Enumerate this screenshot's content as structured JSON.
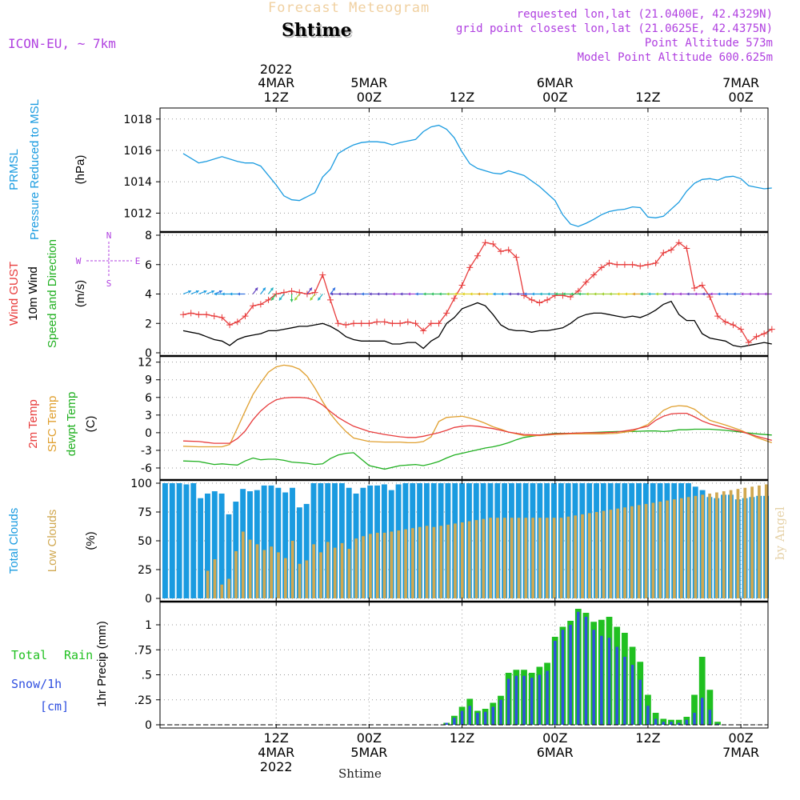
{
  "header": {
    "title_faint": "Forecast Meteogram",
    "station": "Shtime",
    "model": "ICON-EU, ~ 7km",
    "requested": "requested lon,lat (21.0400E, 42.4329N)",
    "gridpoint": "grid point closest lon,lat (21.0625E, 42.4375N)",
    "point_alt": "Point Altitude 573m",
    "model_alt": "Model Point Altitude 600.625m",
    "bottom_station": "Shtime",
    "credit": "by Angel"
  },
  "time_axis": {
    "year": "2022",
    "top_labels": [
      {
        "hour": 12,
        "l1": "4MAR",
        "l2": "12Z"
      },
      {
        "hour": 24,
        "l1": "5MAR",
        "l2": "00Z"
      },
      {
        "hour": 36,
        "l1": "",
        "l2": "12Z"
      },
      {
        "hour": 48,
        "l1": "6MAR",
        "l2": "00Z"
      },
      {
        "hour": 60,
        "l1": "",
        "l2": "12Z"
      },
      {
        "hour": 72,
        "l1": "7MAR",
        "l2": "00Z"
      }
    ],
    "bottom_labels": [
      {
        "hour": 12,
        "l1": "12Z",
        "l2": "4MAR",
        "l3": "2022"
      },
      {
        "hour": 24,
        "l1": "00Z",
        "l2": "5MAR",
        "l3": ""
      },
      {
        "hour": 36,
        "l1": "12Z",
        "l2": "",
        "l3": ""
      },
      {
        "hour": 48,
        "l1": "00Z",
        "l2": "6MAR",
        "l3": ""
      },
      {
        "hour": 60,
        "l1": "12Z",
        "l2": "",
        "l3": ""
      },
      {
        "hour": 72,
        "l1": "00Z",
        "l2": "7MAR",
        "l3": ""
      }
    ]
  },
  "panel_labels": {
    "pressure": {
      "l1": "PRMSL",
      "l2": "Pressure Reduced to MSL",
      "unit": "(hPa)"
    },
    "wind": {
      "gust": "Wind GUST",
      "wind10": "10m Wind",
      "dir": "Speed and Direction",
      "unit": "(m/s)",
      "compass_n": "N",
      "compass_s": "S",
      "compass_w": "W",
      "compass_e": "E"
    },
    "temp": {
      "t2m": "2m Temp",
      "sfc": "SFC Temp",
      "dew": "dewpt Temp",
      "unit": "(C)"
    },
    "clouds": {
      "total": "Total Clouds",
      "low": "Low Clouds",
      "unit": "(%)"
    },
    "precip": {
      "total": "Total",
      "rain": "Rain",
      "snow": "Snow/1h",
      "cm": "[cm]",
      "unit": "1hr Precip (mm)"
    }
  },
  "colors": {
    "pressure": "#1a9be0",
    "gust": "#e83c3c",
    "wind": "#000000",
    "t2m": "#e83c3c",
    "sfc": "#e0a030",
    "dew": "#20b020",
    "total_cloud": "#1a9be0",
    "low_cloud": "#d0a850",
    "rain": "#20c020",
    "snow": "#3050e0"
  },
  "chart_data": [
    {
      "type": "line",
      "title": "PRMSL Pressure Reduced to MSL",
      "ylabel": "(hPa)",
      "ylim": [
        1011,
        1018.5
      ],
      "yticks": [
        1012,
        1014,
        1016,
        1018
      ],
      "x": [
        0,
        2,
        3,
        5,
        7,
        8,
        9,
        10,
        12,
        13,
        14,
        15,
        17,
        18,
        19,
        20,
        21,
        22,
        23,
        24,
        25,
        26,
        27,
        28,
        29,
        30,
        31,
        32,
        33,
        34,
        35,
        36,
        37,
        38,
        39,
        40,
        41,
        42,
        44,
        46,
        48,
        49,
        50,
        51,
        52,
        53,
        54,
        55,
        56,
        57,
        58,
        59,
        60,
        61,
        62,
        64,
        65,
        66,
        67,
        68,
        69,
        70,
        71,
        72,
        73,
        74,
        75,
        76
      ],
      "series": [
        {
          "name": "PRMSL",
          "values": [
            1015.8,
            1015.2,
            1015.3,
            1015.6,
            1015.3,
            1015.2,
            1015.2,
            1015.0,
            1013.8,
            1013.1,
            1012.85,
            1012.8,
            1013.3,
            1014.3,
            1014.8,
            1015.8,
            1016.1,
            1016.35,
            1016.5,
            1016.55,
            1016.55,
            1016.5,
            1016.35,
            1016.5,
            1016.6,
            1016.7,
            1017.2,
            1017.5,
            1017.6,
            1017.35,
            1016.8,
            1015.9,
            1015.15,
            1014.85,
            1014.7,
            1014.55,
            1014.5,
            1014.7,
            1014.4,
            1013.7,
            1012.8,
            1011.9,
            1011.3,
            1011.15,
            1011.35,
            1011.6,
            1011.9,
            1012.1,
            1012.2,
            1012.25,
            1012.4,
            1012.35,
            1011.75,
            1011.7,
            1011.8,
            1012.7,
            1013.4,
            1013.9,
            1014.15,
            1014.2,
            1014.1,
            1014.3,
            1014.35,
            1014.2,
            1013.75,
            1013.65,
            1013.55,
            1013.6
          ]
        }
      ]
    },
    {
      "type": "line",
      "title": "Wind GUST / 10m Wind Speed and Direction",
      "ylabel": "(m/s)",
      "ylim": [
        0,
        8
      ],
      "yticks": [
        0,
        2,
        4,
        6,
        8
      ],
      "x": [
        0,
        1,
        2,
        3,
        4,
        5,
        6,
        7,
        8,
        9,
        10,
        11,
        12,
        13,
        14,
        15,
        16,
        17,
        18,
        19,
        20,
        21,
        22,
        23,
        24,
        25,
        26,
        27,
        28,
        29,
        30,
        31,
        32,
        33,
        34,
        35,
        36,
        37,
        38,
        39,
        40,
        41,
        42,
        43,
        44,
        45,
        46,
        47,
        48,
        49,
        50,
        51,
        52,
        53,
        54,
        55,
        56,
        57,
        58,
        59,
        60,
        61,
        62,
        63,
        64,
        65,
        66,
        67,
        68,
        69,
        70,
        71,
        72,
        73,
        74,
        75,
        76
      ],
      "series": [
        {
          "name": "Wind GUST",
          "values": [
            2.6,
            2.7,
            2.6,
            2.6,
            2.5,
            2.4,
            1.9,
            2.1,
            2.5,
            3.2,
            3.3,
            3.6,
            4.0,
            4.1,
            4.2,
            4.1,
            4.0,
            4.1,
            5.3,
            3.6,
            2.0,
            1.9,
            2.0,
            2.0,
            2.0,
            2.1,
            2.1,
            2.0,
            2.0,
            2.1,
            2.0,
            1.5,
            2.0,
            2.0,
            2.7,
            3.7,
            4.6,
            5.8,
            6.6,
            7.5,
            7.4,
            6.9,
            7.0,
            6.5,
            3.9,
            3.6,
            3.4,
            3.6,
            3.9,
            3.9,
            3.8,
            4.2,
            4.8,
            5.3,
            5.8,
            6.1,
            6.0,
            6.0,
            6.0,
            5.9,
            6.0,
            6.1,
            6.8,
            7.0,
            7.5,
            7.1,
            4.4,
            4.6,
            3.8,
            2.5,
            2.1,
            1.9,
            1.6,
            0.7,
            1.1,
            1.3,
            1.6
          ]
        },
        {
          "name": "10m Wind",
          "values": [
            1.5,
            1.4,
            1.3,
            1.1,
            0.9,
            0.8,
            0.5,
            0.9,
            1.1,
            1.2,
            1.3,
            1.5,
            1.5,
            1.6,
            1.7,
            1.8,
            1.8,
            1.9,
            2.0,
            1.8,
            1.5,
            1.1,
            0.9,
            0.8,
            0.8,
            0.8,
            0.8,
            0.6,
            0.6,
            0.7,
            0.7,
            0.3,
            0.8,
            1.1,
            2.0,
            2.4,
            3.0,
            3.2,
            3.4,
            3.2,
            2.6,
            1.9,
            1.6,
            1.5,
            1.5,
            1.4,
            1.5,
            1.5,
            1.6,
            1.7,
            2.0,
            2.4,
            2.6,
            2.7,
            2.7,
            2.6,
            2.5,
            2.4,
            2.5,
            2.4,
            2.6,
            2.9,
            3.3,
            3.5,
            2.6,
            2.2,
            2.2,
            1.3,
            1.0,
            0.9,
            0.8,
            0.5,
            0.4,
            0.5,
            0.6,
            0.7,
            0.6
          ]
        }
      ]
    },
    {
      "type": "line",
      "title": "2m Temp / SFC Temp / dewpt Temp",
      "ylabel": "(C)",
      "ylim": [
        -7.5,
        12.5
      ],
      "yticks": [
        -6,
        -3,
        0,
        3,
        6,
        9,
        12
      ],
      "x": [
        0,
        2,
        4,
        5,
        6,
        7,
        8,
        9,
        10,
        11,
        12,
        13,
        14,
        15,
        16,
        17,
        18,
        19,
        20,
        21,
        22,
        24,
        26,
        28,
        29,
        30,
        31,
        32,
        33,
        34,
        35,
        36,
        37,
        38,
        39,
        40,
        41,
        42,
        43,
        44,
        46,
        48,
        50,
        52,
        54,
        56,
        58,
        60,
        61,
        62,
        63,
        64,
        65,
        66,
        67,
        68,
        70,
        72,
        74,
        76
      ],
      "series": [
        {
          "name": "2m Temp",
          "values": [
            -1.4,
            -1.5,
            -1.8,
            -1.8,
            -1.8,
            -1.0,
            0.3,
            2.2,
            3.7,
            4.8,
            5.6,
            5.9,
            6.0,
            6.0,
            5.9,
            5.5,
            4.7,
            3.6,
            2.6,
            1.8,
            1.1,
            0.2,
            -0.3,
            -0.7,
            -0.8,
            -0.8,
            -0.6,
            -0.3,
            0.0,
            0.4,
            0.9,
            1.1,
            1.2,
            1.1,
            0.9,
            0.7,
            0.4,
            0.1,
            -0.1,
            -0.3,
            -0.4,
            -0.2,
            -0.1,
            0.0,
            0.0,
            0.1,
            0.5,
            1.1,
            2.1,
            2.8,
            3.2,
            3.3,
            3.3,
            2.7,
            2.0,
            1.5,
            0.8,
            0.2,
            -0.6,
            -1.3
          ]
        },
        {
          "name": "SFC Temp",
          "values": [
            -2.3,
            -2.4,
            -2.4,
            -2.4,
            -2.0,
            0.8,
            3.7,
            6.5,
            8.5,
            10.3,
            11.2,
            11.5,
            11.3,
            10.8,
            9.6,
            7.6,
            5.3,
            3.2,
            1.6,
            0.2,
            -0.9,
            -1.5,
            -1.6,
            -1.6,
            -1.7,
            -1.7,
            -1.5,
            -0.7,
            1.9,
            2.6,
            2.7,
            2.8,
            2.5,
            2.1,
            1.6,
            1.0,
            0.6,
            0.1,
            -0.2,
            -0.5,
            -0.5,
            -0.3,
            -0.2,
            -0.2,
            -0.2,
            -0.1,
            0.3,
            1.4,
            2.6,
            3.8,
            4.4,
            4.6,
            4.5,
            4.0,
            3.0,
            2.1,
            1.3,
            0.4,
            -0.8,
            -1.7
          ]
        },
        {
          "name": "dewpt Temp",
          "values": [
            -4.8,
            -4.9,
            -5.4,
            -5.3,
            -5.4,
            -5.5,
            -4.8,
            -4.3,
            -4.6,
            -4.5,
            -4.5,
            -4.7,
            -5.0,
            -5.1,
            -5.2,
            -5.4,
            -5.3,
            -4.4,
            -3.8,
            -3.5,
            -3.4,
            -5.6,
            -6.2,
            -5.6,
            -5.5,
            -5.4,
            -5.6,
            -5.3,
            -4.9,
            -4.3,
            -3.8,
            -3.5,
            -3.2,
            -2.9,
            -2.6,
            -2.4,
            -2.1,
            -1.7,
            -1.2,
            -0.8,
            -0.4,
            -0.1,
            -0.1,
            0.0,
            0.1,
            0.2,
            0.2,
            0.3,
            0.3,
            0.2,
            0.3,
            0.5,
            0.5,
            0.6,
            0.6,
            0.6,
            0.4,
            0.1,
            -0.2,
            -0.4
          ]
        }
      ]
    },
    {
      "type": "bar",
      "title": "Total Clouds / Low Clouds",
      "ylabel": "(%)",
      "ylim": [
        0,
        100
      ],
      "yticks": [
        0,
        25,
        50,
        75,
        100
      ],
      "series": [
        {
          "name": "Total Clouds",
          "values": [
            100,
            100,
            100,
            99,
            100,
            87,
            91,
            93,
            91,
            73,
            84,
            95,
            93,
            94,
            98,
            98,
            96,
            92,
            96,
            79,
            82,
            100,
            100,
            100,
            100,
            100,
            96,
            91,
            96,
            98,
            98,
            99,
            94,
            99,
            100,
            100,
            100,
            100,
            100,
            100,
            100,
            100,
            100,
            100,
            100,
            100,
            100,
            100,
            100,
            100,
            100,
            100,
            100,
            100,
            100,
            100,
            100,
            100,
            100,
            100,
            100,
            100,
            100,
            100,
            100,
            100,
            100,
            100,
            100,
            100,
            100,
            100,
            100,
            100,
            100,
            97,
            94,
            88,
            87,
            90,
            90,
            86,
            87,
            88,
            89,
            89
          ]
        },
        {
          "name": "Low Clouds",
          "values": [
            0,
            0,
            0,
            0,
            0,
            0,
            24,
            34,
            12,
            17,
            41,
            58,
            51,
            47,
            42,
            45,
            40,
            35,
            50,
            30,
            33,
            47,
            40,
            49,
            44,
            48,
            43,
            52,
            54,
            56,
            57,
            57,
            58,
            59,
            60,
            61,
            62,
            63,
            62,
            63,
            64,
            65,
            66,
            67,
            68,
            69,
            70,
            70,
            70,
            70,
            70,
            70,
            70,
            70,
            70,
            70,
            70,
            71,
            72,
            73,
            74,
            75,
            76,
            77,
            78,
            79,
            80,
            81,
            82,
            83,
            84,
            85,
            86,
            87,
            88,
            89,
            90,
            91,
            92,
            93,
            94,
            95,
            96,
            97,
            98,
            99
          ]
        }
      ]
    },
    {
      "type": "bar",
      "title": "1hr Precip",
      "ylabel": "1hr Precip (mm)",
      "ylim": [
        0,
        1.2
      ],
      "yticks": [
        0,
        0.25,
        0.5,
        0.75,
        1
      ],
      "x": [
        34,
        35,
        36,
        37,
        38,
        39,
        40,
        41,
        42,
        43,
        44,
        45,
        46,
        47,
        48,
        49,
        50,
        51,
        52,
        53,
        54,
        55,
        56,
        57,
        58,
        59,
        60,
        61,
        62,
        63,
        64,
        65,
        66,
        67,
        68,
        69,
        70,
        71,
        72,
        73,
        74
      ],
      "series": [
        {
          "name": "Total Rain",
          "values": [
            0.02,
            0.09,
            0.18,
            0.26,
            0.14,
            0.16,
            0.22,
            0.29,
            0.52,
            0.55,
            0.55,
            0.52,
            0.58,
            0.62,
            0.88,
            0.98,
            1.04,
            1.16,
            1.12,
            1.03,
            1.05,
            1.08,
            0.98,
            0.92,
            0.78,
            0.63,
            0.3,
            0.12,
            0.06,
            0.05,
            0.05,
            0.08,
            0.3,
            0.68,
            0.35,
            0.03,
            0,
            0,
            0,
            0,
            0
          ]
        },
        {
          "name": "Snow/1h [cm]",
          "values": [
            0.02,
            0.07,
            0.14,
            0.19,
            0.12,
            0.13,
            0.18,
            0.25,
            0.46,
            0.49,
            0.49,
            0.47,
            0.5,
            0.54,
            0.84,
            0.95,
            1.0,
            1.13,
            1.08,
            0.95,
            0.89,
            0.87,
            0.78,
            0.68,
            0.6,
            0.45,
            0.19,
            0.06,
            0.03,
            0.03,
            0.02,
            0.05,
            0.12,
            0.27,
            0.15,
            0.01,
            0,
            0,
            0,
            0,
            0
          ]
        }
      ]
    }
  ]
}
